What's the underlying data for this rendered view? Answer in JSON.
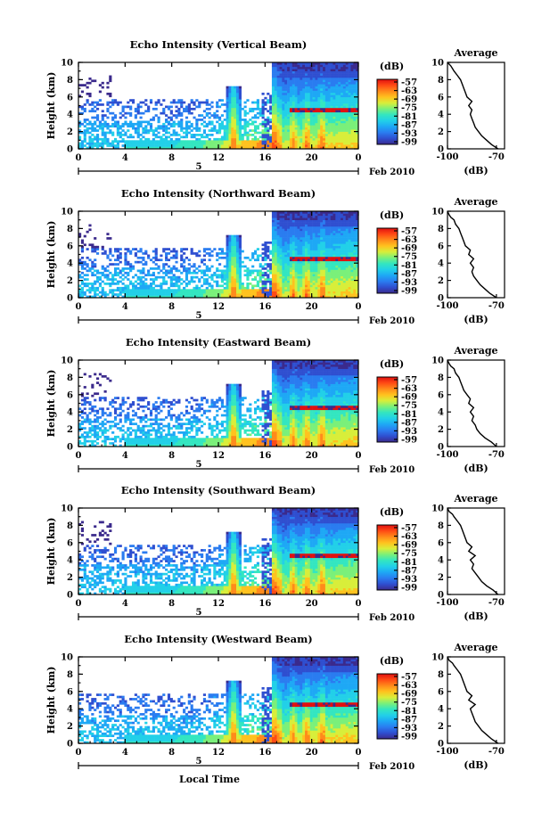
{
  "chart_data": [
    {
      "type": "heatmap",
      "title": "Echo Intensity (Vertical Beam)",
      "ylabel": "Height (km)",
      "xlabel": "",
      "date_label": "Feb 2010",
      "day_label": "5",
      "x_ticks": [
        "0",
        "4",
        "8",
        "12",
        "16",
        "20",
        "0"
      ],
      "y_ticks": [
        "0",
        "2",
        "4",
        "6",
        "8",
        "10"
      ],
      "xlim_hours": [
        0,
        24
      ],
      "ylim_km": [
        0,
        10
      ],
      "colorbar": {
        "label": "(dB)",
        "ticks": [
          "-57",
          "-63",
          "-69",
          "-75",
          "-81",
          "-87",
          "-93",
          "-99"
        ]
      },
      "profile": {
        "title": "Average",
        "xlabel": "(dB)",
        "x_ticks": [
          "-100",
          "-70"
        ],
        "xlim": [
          -100,
          -65
        ],
        "ylim": [
          0,
          10
        ],
        "x": [
          -69,
          -73,
          -76,
          -79,
          -81,
          -83,
          -84,
          -85,
          -86,
          -85,
          -87,
          -85,
          -88,
          -89,
          -90,
          -91,
          -92,
          -94,
          -96,
          -97,
          -98,
          -100
        ],
        "y": [
          0,
          0.5,
          1,
          1.5,
          2,
          2.5,
          3,
          3.5,
          4,
          4.5,
          5,
          5.5,
          6,
          6.5,
          7,
          7.5,
          8,
          8.5,
          9,
          9.3,
          9.6,
          10
        ]
      }
    },
    {
      "type": "heatmap",
      "title": "Echo Intensity (Northward Beam)",
      "ylabel": "Height (km)",
      "xlabel": "",
      "date_label": "Feb 2010",
      "day_label": "5",
      "x_ticks": [
        "0",
        "4",
        "8",
        "12",
        "16",
        "20",
        "0"
      ],
      "y_ticks": [
        "0",
        "2",
        "4",
        "6",
        "8",
        "10"
      ],
      "xlim_hours": [
        0,
        24
      ],
      "ylim_km": [
        0,
        10
      ],
      "colorbar": {
        "label": "(dB)",
        "ticks": [
          "-57",
          "-63",
          "-69",
          "-75",
          "-81",
          "-87",
          "-93",
          "-99"
        ]
      },
      "profile": {
        "title": "Average",
        "xlabel": "(dB)",
        "x_ticks": [
          "-100",
          "-70"
        ],
        "xlim": [
          -100,
          -65
        ],
        "ylim": [
          0,
          10
        ],
        "x": [
          -70,
          -74,
          -77,
          -80,
          -82,
          -84,
          -85,
          -84,
          -86,
          -84,
          -87,
          -86,
          -89,
          -90,
          -91,
          -92,
          -93,
          -95,
          -96,
          -98,
          -99,
          -100
        ],
        "y": [
          0,
          0.5,
          1,
          1.5,
          2,
          2.5,
          3,
          3.5,
          4,
          4.5,
          5,
          5.5,
          6,
          6.5,
          7,
          7.5,
          8,
          8.5,
          9,
          9.3,
          9.6,
          10
        ]
      }
    },
    {
      "type": "heatmap",
      "title": "Echo Intensity (Eastward Beam)",
      "ylabel": "Height (km)",
      "xlabel": "",
      "date_label": "Feb 2010",
      "day_label": "5",
      "x_ticks": [
        "0",
        "4",
        "8",
        "12",
        "16",
        "20",
        "0"
      ],
      "y_ticks": [
        "0",
        "2",
        "4",
        "6",
        "8",
        "10"
      ],
      "xlim_hours": [
        0,
        24
      ],
      "ylim_km": [
        0,
        10
      ],
      "colorbar": {
        "label": "(dB)",
        "ticks": [
          "-57",
          "-63",
          "-69",
          "-75",
          "-81",
          "-87",
          "-93",
          "-99"
        ]
      },
      "profile": {
        "title": "Average",
        "xlabel": "(dB)",
        "x_ticks": [
          "-100",
          "-70"
        ],
        "xlim": [
          -100,
          -65
        ],
        "ylim": [
          0,
          10
        ],
        "x": [
          -70,
          -73,
          -77,
          -80,
          -82,
          -83,
          -85,
          -84,
          -86,
          -84,
          -87,
          -86,
          -88,
          -90,
          -91,
          -92,
          -93,
          -95,
          -96,
          -98,
          -99,
          -100
        ],
        "y": [
          0,
          0.5,
          1,
          1.5,
          2,
          2.5,
          3,
          3.5,
          4,
          4.5,
          5,
          5.5,
          6,
          6.5,
          7,
          7.5,
          8,
          8.5,
          9,
          9.3,
          9.6,
          10
        ]
      }
    },
    {
      "type": "heatmap",
      "title": "Echo Intensity (Southward Beam)",
      "ylabel": "Height (km)",
      "xlabel": "",
      "date_label": "Feb 2010",
      "day_label": "5",
      "x_ticks": [
        "0",
        "4",
        "8",
        "12",
        "16",
        "20",
        "0"
      ],
      "y_ticks": [
        "0",
        "2",
        "4",
        "6",
        "8",
        "10"
      ],
      "xlim_hours": [
        0,
        24
      ],
      "ylim_km": [
        0,
        10
      ],
      "colorbar": {
        "label": "(dB)",
        "ticks": [
          "-57",
          "-63",
          "-69",
          "-75",
          "-81",
          "-87",
          "-93",
          "-99"
        ]
      },
      "profile": {
        "title": "Average",
        "xlabel": "(dB)",
        "x_ticks": [
          "-100",
          "-70"
        ],
        "xlim": [
          -100,
          -65
        ],
        "ylim": [
          0,
          10
        ],
        "x": [
          -69,
          -72,
          -76,
          -79,
          -81,
          -83,
          -85,
          -84,
          -86,
          -83,
          -87,
          -85,
          -88,
          -89,
          -90,
          -91,
          -92,
          -94,
          -96,
          -97,
          -99,
          -100
        ],
        "y": [
          0,
          0.5,
          1,
          1.5,
          2,
          2.5,
          3,
          3.5,
          4,
          4.5,
          5,
          5.5,
          6,
          6.5,
          7,
          7.5,
          8,
          8.5,
          9,
          9.3,
          9.6,
          10
        ]
      }
    },
    {
      "type": "heatmap",
      "title": "Echo Intensity (Westward Beam)",
      "ylabel": "Height (km)",
      "xlabel": "Local Time",
      "date_label": "Feb 2010",
      "day_label": "5",
      "x_ticks": [
        "0",
        "4",
        "8",
        "12",
        "16",
        "20",
        "0"
      ],
      "y_ticks": [
        "0",
        "2",
        "4",
        "6",
        "8",
        "10"
      ],
      "xlim_hours": [
        0,
        24
      ],
      "ylim_km": [
        0,
        10
      ],
      "colorbar": {
        "label": "(dB)",
        "ticks": [
          "-57",
          "-63",
          "-69",
          "-75",
          "-81",
          "-87",
          "-93",
          "-99"
        ]
      },
      "profile": {
        "title": "Average",
        "xlabel": "(dB)",
        "x_ticks": [
          "-100",
          "-70"
        ],
        "xlim": [
          -100,
          -65
        ],
        "ylim": [
          0,
          10
        ],
        "x": [
          -69,
          -73,
          -76,
          -79,
          -81,
          -83,
          -84,
          -85,
          -86,
          -83,
          -87,
          -85,
          -88,
          -89,
          -90,
          -91,
          -92,
          -94,
          -96,
          -97,
          -99,
          -100
        ],
        "y": [
          0,
          0.5,
          1,
          1.5,
          2,
          2.5,
          3,
          3.5,
          4,
          4.5,
          5,
          5.5,
          6,
          6.5,
          7,
          7.5,
          8,
          8.5,
          9,
          9.3,
          9.6,
          10
        ]
      }
    }
  ],
  "colors": {
    "scale": [
      "#3b2a8c",
      "#2f4fd0",
      "#2a7cf0",
      "#1ea8f5",
      "#22d0e8",
      "#33e6c0",
      "#7af07a",
      "#d8ee3a",
      "#ffc21e",
      "#ff8a1a",
      "#ff4a14",
      "#e01010"
    ]
  }
}
